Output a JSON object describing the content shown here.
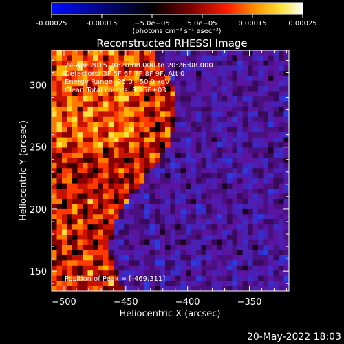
{
  "chart_data": {
    "type": "heatmap",
    "title": "Reconstructed RHESSI Image",
    "xlabel": "Heliocentric X (arcsec)",
    "ylabel": "Heliocentric Y (arcsec)",
    "xlim": [
      -510,
      -318
    ],
    "ylim": [
      134,
      328
    ],
    "x_ticks": [
      -500,
      -450,
      -400,
      -350
    ],
    "y_ticks": [
      150,
      200,
      250,
      300
    ],
    "colorbar": {
      "range": [
        -0.00025,
        0.00025
      ],
      "tick_values": [
        -0.00025,
        -0.00015,
        -5e-05,
        5e-05,
        0.00015,
        0.00025
      ],
      "tick_labels": [
        "-0.00025",
        "-0.00015",
        "−5.0e−05",
        "5.0e−05",
        "0.00015",
        "0.00025"
      ],
      "unit_label": "(photons cm⁻² s⁻¹ asec⁻²)",
      "colormap": [
        "#000cff",
        "#000000",
        "#7a0000",
        "#ff1e00",
        "#ff9a00",
        "#ffe640",
        "#ffffff"
      ]
    },
    "annotations": [
      "24-Apr-2015 20:20:08.000 to 20:26:08.000",
      "Detectors: 3F 5F 6F 7F 8F 9F, Att 0",
      "Energy Range: 25.0 - 50.0 keV",
      "Clean   Total counts: 8.15E+03"
    ],
    "peak_label": "Position of Peak = [-469,311]",
    "peak": [
      -469,
      311
    ],
    "grid": false,
    "bright_region": "left half",
    "dim_region": "right half (purple/blue)"
  },
  "footer": {
    "date": "20-May-2022 18:03"
  }
}
